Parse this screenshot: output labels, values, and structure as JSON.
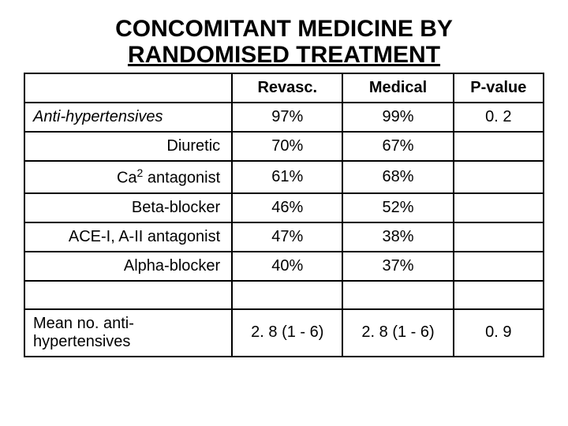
{
  "title_line1": "CONCOMITANT MEDICINE BY",
  "title_line2": "RANDOMISED TREATMENT",
  "table": {
    "type": "table",
    "columns": [
      "",
      "Revasc.",
      "Medical",
      "P-value"
    ],
    "rows": [
      {
        "label": "Anti-hypertensives",
        "style": "italic",
        "revasc": "97%",
        "medical": "99%",
        "p": "0. 2"
      },
      {
        "label": "Diuretic",
        "style": "sub",
        "revasc": "70%",
        "medical": "67%",
        "p": ""
      },
      {
        "label": "Ca2 antagonist",
        "style": "sub",
        "sup": true,
        "revasc": "61%",
        "medical": "68%",
        "p": ""
      },
      {
        "label": "Beta-blocker",
        "style": "sub",
        "revasc": "46%",
        "medical": "52%",
        "p": ""
      },
      {
        "label": "ACE-I, A-II antagonist",
        "style": "sub",
        "revasc": "47%",
        "medical": "38%",
        "p": ""
      },
      {
        "label": "Alpha-blocker",
        "style": "sub",
        "revasc": "40%",
        "medical": "37%",
        "p": ""
      },
      {
        "label": "",
        "style": "blank",
        "revasc": "",
        "medical": "",
        "p": ""
      },
      {
        "label": "Mean no. anti-hypertensives",
        "style": "normal",
        "revasc": "2. 8  (1 - 6)",
        "medical": "2. 8  (1 - 6)",
        "p": "0. 9"
      }
    ],
    "border_color": "#000000",
    "background_color": "#ffffff",
    "header_fontsize": 20,
    "cell_fontsize": 20
  }
}
